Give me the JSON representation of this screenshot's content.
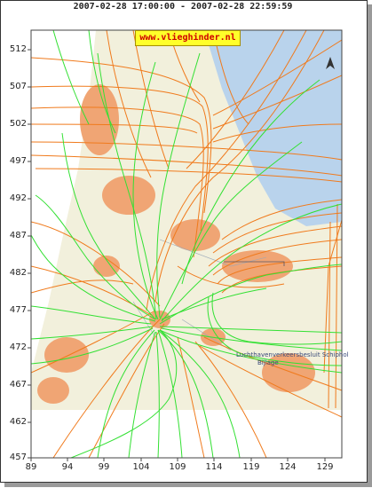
{
  "header": {
    "time_range": "2007-02-28 17:00:00 - 2007-02-28 22:59:59"
  },
  "site_badge": "www.vlieghinder.nl",
  "north_arrow_icon": "north-arrow-icon",
  "y_axis_labels": [
    "512",
    "507",
    "502",
    "497",
    "492",
    "487",
    "482",
    "477",
    "472",
    "467",
    "462",
    "457"
  ],
  "x_axis_labels": [
    "89",
    "94",
    "99",
    "104",
    "109",
    "114",
    "119",
    "124",
    "129"
  ],
  "map_labels": {
    "schiphol_label": "Luchthavenverkeersbesluit Schiphol",
    "place_label": "Bijlage"
  },
  "colors": {
    "arrivals": "#f07a1c",
    "departures": "#33e033",
    "land": "#f2f0dc",
    "water": "#b9d3ec",
    "urban": "#f0a574"
  }
}
